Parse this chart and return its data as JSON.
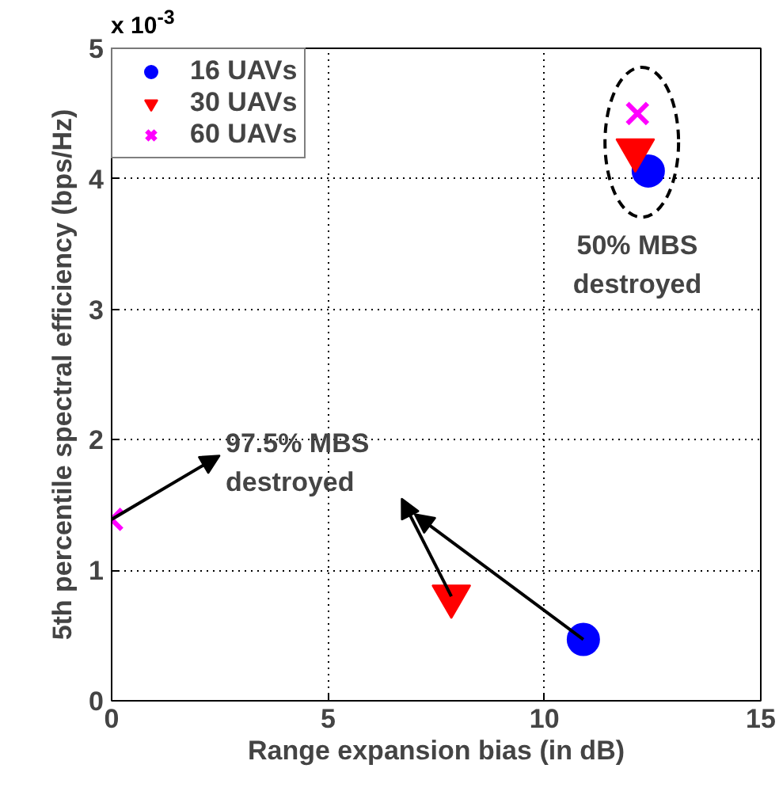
{
  "chart_data": {
    "type": "scatter",
    "xlabel": "Range expansion bias (in dB)",
    "ylabel": "5th percentile spectral efficiency (bps/Hz)",
    "xlim": [
      0,
      15
    ],
    "xticks": [
      0,
      5,
      10,
      15
    ],
    "ylim": [
      0,
      5
    ],
    "yticks": [
      0,
      1,
      2,
      3,
      4,
      5
    ],
    "grid": true,
    "legend": "top left",
    "series": [
      {
        "name": "16 UAVs",
        "color": "#0000ff",
        "marker": "circle",
        "x": [
          10.9,
          12.4
        ],
        "values": [
          0.47,
          4.06
        ]
      },
      {
        "name": "30 UAVs",
        "color": "#ff0000",
        "marker": "triangle",
        "x": [
          7.85,
          12.1
        ],
        "values": [
          0.8,
          4.22
        ]
      },
      {
        "name": "60 UAVs",
        "color": "#ff00ff",
        "marker": "cross",
        "x": [
          0,
          12.15
        ],
        "values": [
          1.39,
          4.5
        ]
      }
    ],
    "annotations": [
      "x 10$^{-3}$",
      "97.5% MBS\ndestroyed",
      "50% MBS\ndestroyed"
    ]
  }
}
